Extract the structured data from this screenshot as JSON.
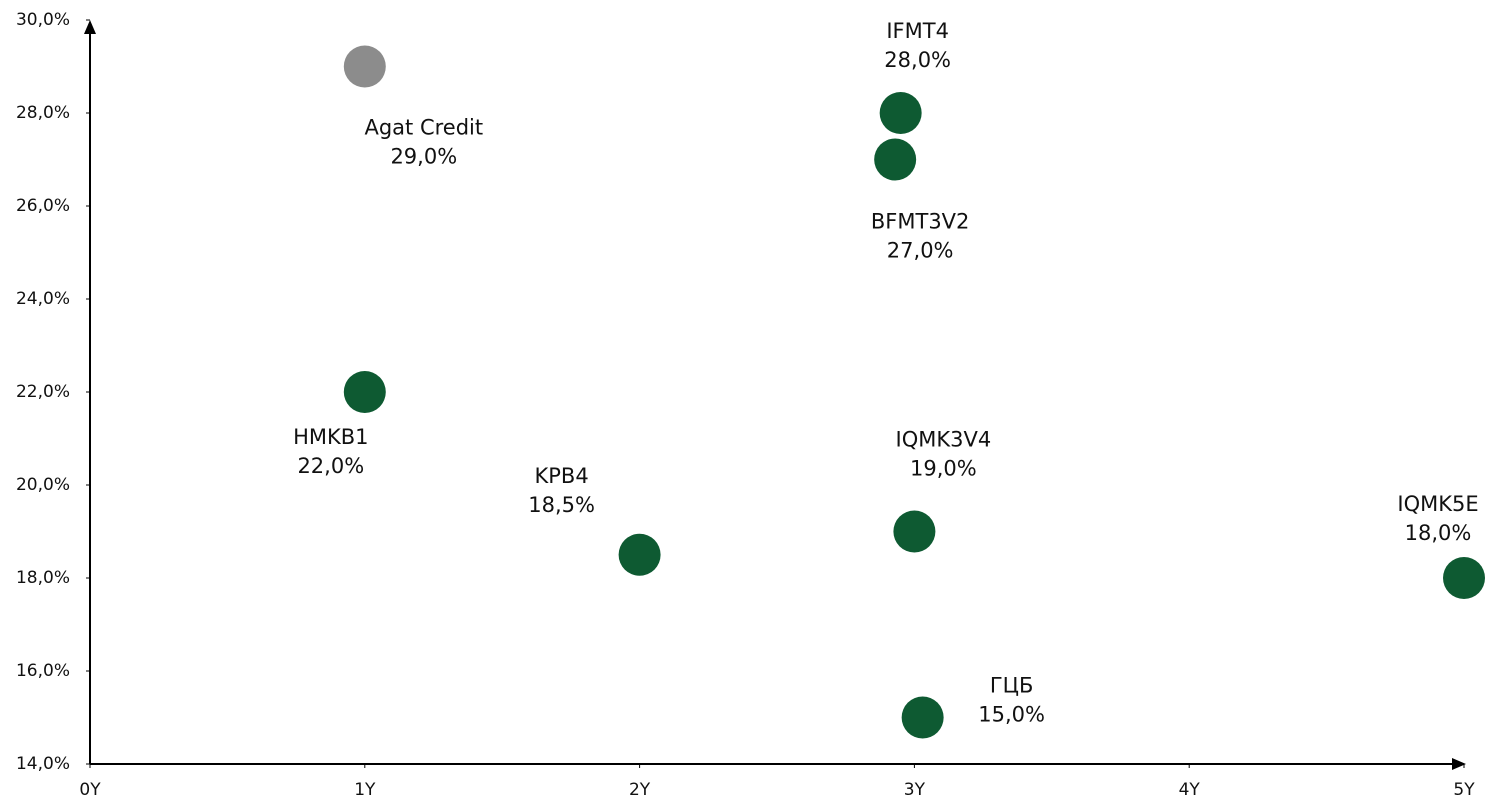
{
  "chart_data": {
    "type": "scatter",
    "points": [
      {
        "name": "Agat Credit",
        "x": 1.0,
        "y": 29.0,
        "value_label": "29,0%",
        "color": "#8c8c8c"
      },
      {
        "name": "IFMT4",
        "x": 2.95,
        "y": 28.0,
        "value_label": "28,0%",
        "color": "#0e5a32"
      },
      {
        "name": "BFMT3V2",
        "x": 2.93,
        "y": 27.0,
        "value_label": "27,0%",
        "color": "#0e5a32"
      },
      {
        "name": "HMKB1",
        "x": 1.0,
        "y": 22.0,
        "value_label": "22,0%",
        "color": "#0e5a32"
      },
      {
        "name": "KPB4",
        "x": 2.0,
        "y": 18.5,
        "value_label": "18,5%",
        "color": "#0e5a32"
      },
      {
        "name": "IQMK3V4",
        "x": 3.0,
        "y": 19.0,
        "value_label": "19,0%",
        "color": "#0e5a32"
      },
      {
        "name": "IQMK5E",
        "x": 5.0,
        "y": 18.0,
        "value_label": "18,0%",
        "color": "#0e5a32"
      },
      {
        "name": "ГЦБ",
        "x": 3.03,
        "y": 15.0,
        "value_label": "15,0%",
        "color": "#0e5a32"
      }
    ],
    "xlim": [
      0,
      5
    ],
    "xticks": [
      {
        "value": 0,
        "label": "0Y"
      },
      {
        "value": 1,
        "label": "1Y"
      },
      {
        "value": 2,
        "label": "2Y"
      },
      {
        "value": 3,
        "label": "3Y"
      },
      {
        "value": 4,
        "label": "4Y"
      },
      {
        "value": 5,
        "label": "5Y"
      }
    ],
    "ylim": [
      14,
      30
    ],
    "yticks": [
      {
        "value": 14,
        "label": "14,0%"
      },
      {
        "value": 16,
        "label": "16,0%"
      },
      {
        "value": 18,
        "label": "18,0%"
      },
      {
        "value": 20,
        "label": "20,0%"
      },
      {
        "value": 22,
        "label": "22,0%"
      },
      {
        "value": 24,
        "label": "24,0%"
      },
      {
        "value": 26,
        "label": "26,0%"
      },
      {
        "value": 28,
        "label": "28,0%"
      },
      {
        "value": 30,
        "label": "30,0%"
      }
    ]
  }
}
